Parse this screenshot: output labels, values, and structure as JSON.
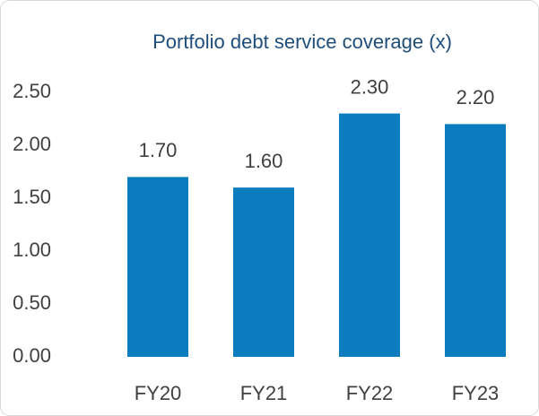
{
  "chart_data": {
    "type": "bar",
    "title": "Portfolio debt service coverage (x)",
    "categories": [
      "FY20",
      "FY21",
      "FY22",
      "FY23"
    ],
    "values": [
      1.7,
      1.6,
      2.3,
      2.2
    ],
    "value_labels": [
      "1.70",
      "1.60",
      "2.30",
      "2.20"
    ],
    "color": "#0b7dbf",
    "ylim": [
      0,
      2.5
    ],
    "yticks": [
      {
        "value": 0,
        "label": "0.00"
      },
      {
        "value": 0.5,
        "label": "0.50"
      },
      {
        "value": 1,
        "label": "1.00"
      },
      {
        "value": 1.5,
        "label": "1.50"
      },
      {
        "value": 2,
        "label": "2.00"
      },
      {
        "value": 2.5,
        "label": "2.50"
      }
    ],
    "grid": false
  }
}
